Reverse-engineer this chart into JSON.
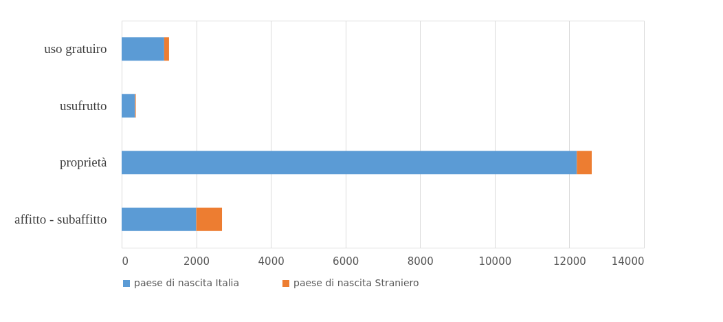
{
  "chart_data": {
    "type": "bar",
    "orientation": "horizontal",
    "stacked": true,
    "categories": [
      "uso gratuiro",
      "usufrutto",
      "proprietà",
      "affitto - subaffitto"
    ],
    "series": [
      {
        "name": "paese di nascita Italia",
        "color": "#5b9bd5",
        "values": [
          1140,
          360,
          12200,
          2000
        ]
      },
      {
        "name": "paese di nascita Straniero",
        "color": "#ed7d31",
        "values": [
          130,
          20,
          400,
          690
        ]
      }
    ],
    "xlim": [
      0,
      14000
    ],
    "xticks": [
      0,
      2000,
      4000,
      6000,
      8000,
      10000,
      12000,
      14000
    ],
    "grid": "x",
    "legend": "bottom"
  }
}
